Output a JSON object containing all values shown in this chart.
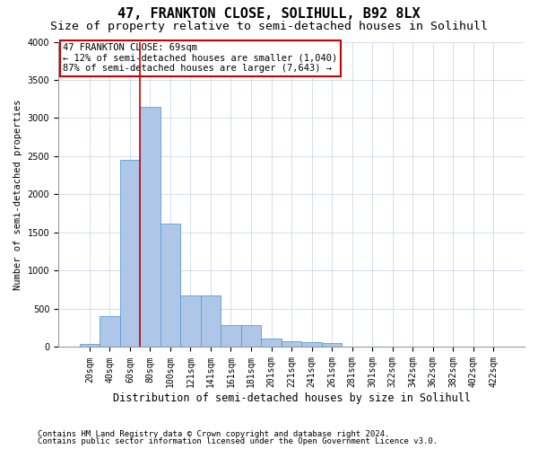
{
  "title": "47, FRANKTON CLOSE, SOLIHULL, B92 8LX",
  "subtitle": "Size of property relative to semi-detached houses in Solihull",
  "xlabel": "Distribution of semi-detached houses by size in Solihull",
  "ylabel": "Number of semi-detached properties",
  "footer1": "Contains HM Land Registry data © Crown copyright and database right 2024.",
  "footer2": "Contains public sector information licensed under the Open Government Licence v3.0.",
  "bins": [
    "20sqm",
    "40sqm",
    "60sqm",
    "80sqm",
    "100sqm",
    "121sqm",
    "141sqm",
    "161sqm",
    "181sqm",
    "201sqm",
    "221sqm",
    "241sqm",
    "261sqm",
    "281sqm",
    "301sqm",
    "322sqm",
    "342sqm",
    "362sqm",
    "382sqm",
    "402sqm",
    "422sqm"
  ],
  "values": [
    35,
    400,
    2450,
    3150,
    1620,
    680,
    680,
    290,
    290,
    115,
    75,
    60,
    55,
    0,
    0,
    0,
    0,
    0,
    0,
    0,
    0
  ],
  "bar_color": "#aec6e8",
  "bar_edge_color": "#5a9fd4",
  "grid_color": "#cdd8ea",
  "annotation_text": "47 FRANKTON CLOSE: 69sqm\n← 12% of semi-detached houses are smaller (1,040)\n87% of semi-detached houses are larger (7,643) →",
  "annotation_box_color": "white",
  "annotation_box_edge": "#cc0000",
  "vline_color": "#cc0000",
  "vline_x": 2.5,
  "ylim": [
    0,
    4000
  ],
  "yticks": [
    0,
    500,
    1000,
    1500,
    2000,
    2500,
    3000,
    3500,
    4000
  ],
  "title_fontsize": 11,
  "subtitle_fontsize": 9.5,
  "xlabel_fontsize": 8.5,
  "ylabel_fontsize": 7.5,
  "tick_fontsize": 7,
  "annot_fontsize": 7.5,
  "footer_fontsize": 6.5
}
